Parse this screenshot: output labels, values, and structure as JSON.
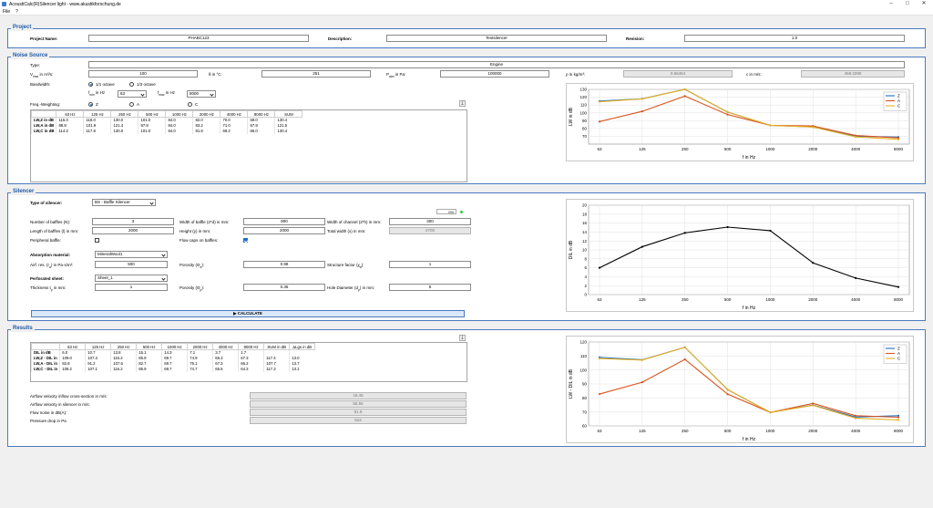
{
  "window": {
    "title": "AcoustiCalc(R)Silencer light - www.akustikforschung.de"
  },
  "menu": {
    "file": "File",
    "help": "?"
  },
  "project": {
    "section_title": "Project",
    "name_label": "Project Name:",
    "name_value": "PHABC123",
    "desc_label": "Description:",
    "desc_value": "Testsilencer",
    "rev_label": "Revision:",
    "rev_value": "1.0"
  },
  "noise": {
    "section_title": "Noise Source",
    "type_label": "Type:",
    "type_value": "Engine",
    "vmax_label_main": "V",
    "vmax_label_sub": "max",
    "vmax_label_rest": " in m³/s:",
    "vmax_value": "100",
    "theta_label": "θ in °C:",
    "theta_value": "251",
    "patm_label_main": "P",
    "patm_label_sub": "atm",
    "patm_label_rest": " in Pa:",
    "patm_value": "100000",
    "rho_label": "ρ in kg/m³:",
    "rho_value": "0.66464",
    "c_label": "c in m/s:",
    "c_value": "459.3295",
    "bandwidth_label": "Bandwidth:",
    "bw_options": [
      "1/1 octave",
      "1/3 octave"
    ],
    "fmin_label_main": "f",
    "fmin_label_sub": "min",
    "fmin_label_rest": " in Hz",
    "fmin_value": "63",
    "fmax_label_main": "f",
    "fmax_label_sub": "max",
    "fmax_label_rest": " in Hz",
    "fmax_value": "8000",
    "weighting_label": "Freq.-Weighting:",
    "weight_options": [
      "Z",
      "A",
      "C"
    ],
    "table": {
      "headers": [
        "",
        "63 Hz",
        "125 Hz",
        "250 Hz",
        "500 Hz",
        "1000 Hz",
        "2000 Hz",
        "4000 Hz",
        "8000 Hz",
        "SUM"
      ],
      "rows": [
        {
          "label": "LW,Z in dB",
          "values": [
            "115.0",
            "118.0",
            "130.0",
            "101.0",
            "84.0",
            "82.0",
            "70.0",
            "69.0",
            "130.4"
          ]
        },
        {
          "label": "LW,A in dB",
          "values": [
            "88.8",
            "101.9",
            "121.4",
            "97.8",
            "84.0",
            "83.2",
            "71.0",
            "67.9",
            "121.5"
          ]
        },
        {
          "label": "LW,C in dB",
          "values": [
            "114.2",
            "117.8",
            "130.0",
            "101.0",
            "84.0",
            "81.8",
            "69.2",
            "66.0",
            "130.4"
          ]
        }
      ]
    }
  },
  "silencer": {
    "section_title": "Silencer",
    "type_label": "Type of silencer:",
    "type_value": "BS - Baffle Silencer",
    "progress": "0%",
    "n_label": "Number of baffles (N):",
    "n_value": "3",
    "width_label": "Width of baffle (2*d) in mm:",
    "width_value": "800",
    "chan_label": "Width of channel (2*h) in mm:",
    "chan_value": "300",
    "len_label": "Length of baffles (l) in mm:",
    "len_value": "2000",
    "height_label": "Height (y) in mm:",
    "height_value": "2000",
    "total_label": "Total width (x) in mm:",
    "total_value": "2700",
    "periph_label": "Peripheral baffle:",
    "flow_label": "Flow caps on baffles:",
    "abs_label": "Absorption material:",
    "abs_value": "MineralWool1",
    "airflow_label": "Airf. res. (r",
    "airflow_label_rest": ") in Pa·s/m²:",
    "airflow_value": "500",
    "por_a_label": "Porosity (Θ",
    "por_a_label_rest": "):",
    "por_a_value": "0.98",
    "struct_label": "Structure factor (χ",
    "struct_label_rest": "):",
    "struct_value": "1",
    "perf_label": "Perforated sheet:",
    "perf_value": "Sheet_1",
    "thick_label": "Thickness t",
    "thick_label_rest": " in mm:",
    "thick_value": "1",
    "por_p_label": "Porosity (Θ",
    "por_p_label_rest": "):",
    "por_p_value": "0.35",
    "hole_label": "Hole Diameter (d",
    "hole_label_rest": ") in mm:",
    "hole_value": "5",
    "calc_label": "▶ CALCULATE"
  },
  "results": {
    "section_title": "Results",
    "table": {
      "headers": [
        "",
        "63 Hz",
        "125 Hz",
        "250 Hz",
        "500 Hz",
        "1000 Hz",
        "2000 Hz",
        "4000 Hz",
        "8000 Hz",
        "SUM in dB",
        "ΔLgs in dB"
      ],
      "rows": [
        {
          "label": "DIL in dB",
          "values": [
            "6.0",
            "10.7",
            "13.8",
            "15.1",
            "14.3",
            "7.1",
            "3.7",
            "1.7",
            "",
            ""
          ]
        },
        {
          "label": "LW,Z - DIL in",
          "values": [
            "109.0",
            "107.3",
            "116.2",
            "85.9",
            "69.7",
            "74.9",
            "66.3",
            "67.3",
            "117.4",
            "13.0"
          ]
        },
        {
          "label": "LW,A - DIL in",
          "values": [
            "82.8",
            "91.2",
            "107.6",
            "82.7",
            "69.7",
            "76.1",
            "67.3",
            "66.2",
            "107.7",
            "13.7"
          ]
        },
        {
          "label": "LW,C - DIL in",
          "values": [
            "108.2",
            "107.1",
            "116.2",
            "85.9",
            "69.7",
            "74.7",
            "65.5",
            "64.3",
            "117.3",
            "13.1"
          ]
        }
      ]
    },
    "metrics": [
      {
        "label": "Airflow velocity inflow cross-section in m/s:",
        "value": "18.45"
      },
      {
        "label": "Airflow velocity in silencer in m/s:",
        "value": "55.56"
      },
      {
        "label": "Flow noise in dB(A):",
        "value": "91.9"
      },
      {
        "label": "Pressure drop in Pa",
        "value": "522"
      }
    ]
  },
  "colors": {
    "Z": "#1f6fbf",
    "A": "#d9531e",
    "C": "#e8b021",
    "dil": "#000000",
    "accent": "#1e5aa8"
  },
  "chart_data": [
    {
      "type": "line",
      "x": [
        "63",
        "125",
        "250",
        "500",
        "1000",
        "2000",
        "4000",
        "8000"
      ],
      "xlabel": "f in Hz",
      "ylabel": "LW in dB",
      "ylim": [
        60,
        130
      ],
      "yticks": [
        70,
        80,
        90,
        100,
        110,
        120,
        130
      ],
      "grid": true,
      "legend": "top-right",
      "series": [
        {
          "name": "Z",
          "values": [
            115.0,
            118.0,
            130.0,
            101.0,
            84.0,
            82.0,
            70.0,
            69.0
          ]
        },
        {
          "name": "A",
          "values": [
            88.8,
            101.9,
            121.4,
            97.8,
            84.0,
            83.2,
            71.0,
            67.9
          ]
        },
        {
          "name": "C",
          "values": [
            114.2,
            117.8,
            130.0,
            101.0,
            84.0,
            81.8,
            69.2,
            66.0
          ]
        }
      ]
    },
    {
      "type": "line",
      "x": [
        "63",
        "125",
        "250",
        "500",
        "1000",
        "2000",
        "4000",
        "8000"
      ],
      "xlabel": "f in Hz",
      "ylabel": "DIL in dB",
      "ylim": [
        0,
        20
      ],
      "yticks": [
        0,
        2,
        4,
        6,
        8,
        10,
        12,
        14,
        16,
        18,
        20
      ],
      "grid": true,
      "series": [
        {
          "values": [
            6.0,
            10.7,
            13.8,
            15.1,
            14.3,
            7.1,
            3.7,
            1.7
          ]
        }
      ]
    },
    {
      "type": "line",
      "x": [
        "63",
        "125",
        "250",
        "500",
        "1000",
        "2000",
        "4000",
        "8000"
      ],
      "xlabel": "f in Hz",
      "ylabel": "LW - DIL in dB",
      "ylim": [
        60,
        120
      ],
      "yticks": [
        60,
        70,
        80,
        90,
        100,
        110,
        120
      ],
      "grid": true,
      "legend": "top-right",
      "series": [
        {
          "name": "Z",
          "values": [
            109.0,
            107.3,
            116.2,
            85.9,
            69.7,
            74.9,
            66.3,
            67.3
          ]
        },
        {
          "name": "A",
          "values": [
            82.8,
            91.2,
            107.6,
            82.7,
            69.7,
            76.1,
            67.3,
            66.2
          ]
        },
        {
          "name": "C",
          "values": [
            108.2,
            107.1,
            116.2,
            85.9,
            69.7,
            74.7,
            65.5,
            64.3
          ]
        }
      ]
    }
  ]
}
